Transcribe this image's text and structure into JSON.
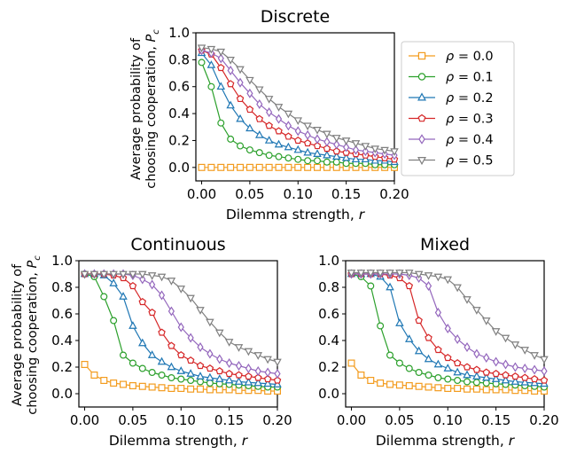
{
  "figure": {
    "ylabel_line1": "Average probability of",
    "ylabel_line2": "choosing cooperation,",
    "ylabel_symbol": "P",
    "ylabel_sub": "c"
  },
  "legend": {
    "symbol": "ρ",
    "entries": [
      "= 0.0",
      "= 0.1",
      "= 0.2",
      "= 0.3",
      "= 0.4",
      "= 0.5"
    ]
  },
  "chart_data": [
    {
      "type": "line",
      "title": "Discrete",
      "xlabel": "Dilemma strength, ",
      "xlabel_var": "r",
      "xlim": [
        -0.006,
        0.2
      ],
      "ylim": [
        -0.1,
        1.0
      ],
      "xticks": [
        "0.00",
        "0.05",
        "0.10",
        "0.15",
        "0.20"
      ],
      "yticks": [
        "0.0",
        "0.2",
        "0.4",
        "0.6",
        "0.8",
        "1.0"
      ],
      "x": [
        0.0,
        0.01,
        0.02,
        0.03,
        0.04,
        0.05,
        0.06,
        0.07,
        0.08,
        0.09,
        0.1,
        0.11,
        0.12,
        0.13,
        0.14,
        0.15,
        0.16,
        0.17,
        0.18,
        0.19,
        0.2
      ],
      "series": [
        {
          "name": "ρ = 0.0",
          "color": "#f39c1f",
          "marker": "square",
          "values": [
            0.0,
            0.0,
            0.0,
            0.0,
            0.0,
            0.0,
            0.0,
            0.0,
            0.0,
            0.0,
            0.0,
            0.0,
            0.0,
            0.0,
            0.0,
            0.0,
            0.0,
            0.0,
            0.0,
            0.0,
            0.0
          ]
        },
        {
          "name": "ρ = 0.1",
          "color": "#2ca02c",
          "marker": "circle",
          "values": [
            0.78,
            0.6,
            0.33,
            0.21,
            0.16,
            0.13,
            0.11,
            0.09,
            0.08,
            0.07,
            0.06,
            0.05,
            0.05,
            0.04,
            0.04,
            0.03,
            0.03,
            0.03,
            0.02,
            0.02,
            0.02
          ]
        },
        {
          "name": "ρ = 0.2",
          "color": "#1f77b4",
          "marker": "triangle-up",
          "values": [
            0.85,
            0.76,
            0.6,
            0.46,
            0.36,
            0.29,
            0.24,
            0.2,
            0.17,
            0.15,
            0.13,
            0.11,
            0.1,
            0.09,
            0.08,
            0.07,
            0.06,
            0.06,
            0.05,
            0.05,
            0.04
          ]
        },
        {
          "name": "ρ = 0.3",
          "color": "#d62728",
          "marker": "pentagon",
          "values": [
            0.87,
            0.84,
            0.74,
            0.62,
            0.51,
            0.43,
            0.36,
            0.31,
            0.27,
            0.23,
            0.2,
            0.18,
            0.16,
            0.14,
            0.12,
            0.11,
            0.1,
            0.09,
            0.08,
            0.07,
            0.06
          ]
        },
        {
          "name": "ρ = 0.4",
          "color": "#9467bd",
          "marker": "diamond",
          "values": [
            0.87,
            0.85,
            0.81,
            0.72,
            0.63,
            0.55,
            0.47,
            0.41,
            0.36,
            0.31,
            0.27,
            0.24,
            0.21,
            0.19,
            0.17,
            0.15,
            0.13,
            0.12,
            0.11,
            0.1,
            0.09
          ]
        },
        {
          "name": "ρ = 0.5",
          "color": "#7f7f7f",
          "marker": "triangle-down",
          "values": [
            0.89,
            0.88,
            0.86,
            0.8,
            0.73,
            0.65,
            0.58,
            0.51,
            0.45,
            0.4,
            0.35,
            0.31,
            0.28,
            0.25,
            0.22,
            0.2,
            0.18,
            0.16,
            0.14,
            0.13,
            0.12
          ]
        }
      ]
    },
    {
      "type": "line",
      "title": "Continuous",
      "xlabel": "Dilemma strength, ",
      "xlabel_var": "r",
      "xlim": [
        -0.006,
        0.2
      ],
      "ylim": [
        -0.1,
        1.0
      ],
      "xticks": [
        "0.00",
        "0.05",
        "0.10",
        "0.15",
        "0.20"
      ],
      "yticks": [
        "0.0",
        "0.2",
        "0.4",
        "0.6",
        "0.8",
        "1.0"
      ],
      "x": [
        0.0,
        0.01,
        0.02,
        0.03,
        0.04,
        0.05,
        0.06,
        0.07,
        0.08,
        0.09,
        0.1,
        0.11,
        0.12,
        0.13,
        0.14,
        0.15,
        0.16,
        0.17,
        0.18,
        0.19,
        0.2
      ],
      "series": [
        {
          "name": "ρ = 0.0",
          "color": "#f39c1f",
          "marker": "square",
          "values": [
            0.22,
            0.14,
            0.1,
            0.08,
            0.07,
            0.06,
            0.055,
            0.05,
            0.045,
            0.04,
            0.04,
            0.035,
            0.035,
            0.03,
            0.03,
            0.03,
            0.025,
            0.025,
            0.025,
            0.02,
            0.02
          ]
        },
        {
          "name": "ρ = 0.1",
          "color": "#2ca02c",
          "marker": "circle",
          "values": [
            0.9,
            0.88,
            0.73,
            0.55,
            0.29,
            0.23,
            0.19,
            0.16,
            0.14,
            0.12,
            0.11,
            0.1,
            0.09,
            0.08,
            0.075,
            0.07,
            0.065,
            0.06,
            0.055,
            0.05,
            0.05
          ]
        },
        {
          "name": "ρ = 0.2",
          "color": "#1f77b4",
          "marker": "triangle-up",
          "values": [
            0.9,
            0.9,
            0.89,
            0.83,
            0.73,
            0.51,
            0.38,
            0.29,
            0.24,
            0.2,
            0.17,
            0.15,
            0.13,
            0.12,
            0.11,
            0.1,
            0.09,
            0.085,
            0.08,
            0.075,
            0.07
          ]
        },
        {
          "name": "ρ = 0.3",
          "color": "#d62728",
          "marker": "pentagon",
          "values": [
            0.9,
            0.9,
            0.9,
            0.89,
            0.87,
            0.81,
            0.69,
            0.61,
            0.46,
            0.36,
            0.29,
            0.25,
            0.21,
            0.19,
            0.17,
            0.15,
            0.14,
            0.13,
            0.12,
            0.11,
            0.1
          ]
        },
        {
          "name": "ρ = 0.4",
          "color": "#9467bd",
          "marker": "diamond",
          "values": [
            0.9,
            0.9,
            0.9,
            0.9,
            0.9,
            0.89,
            0.86,
            0.82,
            0.74,
            0.62,
            0.5,
            0.42,
            0.35,
            0.3,
            0.26,
            0.23,
            0.21,
            0.19,
            0.17,
            0.16,
            0.15
          ]
        },
        {
          "name": "ρ = 0.5",
          "color": "#7f7f7f",
          "marker": "triangle-down",
          "values": [
            0.9,
            0.9,
            0.9,
            0.9,
            0.9,
            0.9,
            0.9,
            0.89,
            0.88,
            0.85,
            0.79,
            0.72,
            0.63,
            0.54,
            0.46,
            0.39,
            0.35,
            0.32,
            0.29,
            0.26,
            0.24
          ]
        }
      ]
    },
    {
      "type": "line",
      "title": "Mixed",
      "xlabel": "Dilemma strength, ",
      "xlabel_var": "r",
      "xlim": [
        -0.006,
        0.2
      ],
      "ylim": [
        -0.1,
        1.0
      ],
      "xticks": [
        "0.00",
        "0.05",
        "0.10",
        "0.15",
        "0.20"
      ],
      "yticks": [
        "0.0",
        "0.2",
        "0.4",
        "0.6",
        "0.8",
        "1.0"
      ],
      "x": [
        0.0,
        0.01,
        0.02,
        0.03,
        0.04,
        0.05,
        0.06,
        0.07,
        0.08,
        0.09,
        0.1,
        0.11,
        0.12,
        0.13,
        0.14,
        0.15,
        0.16,
        0.17,
        0.18,
        0.19,
        0.2
      ],
      "series": [
        {
          "name": "ρ = 0.0",
          "color": "#f39c1f",
          "marker": "square",
          "values": [
            0.23,
            0.14,
            0.1,
            0.08,
            0.07,
            0.065,
            0.06,
            0.055,
            0.05,
            0.045,
            0.04,
            0.04,
            0.035,
            0.035,
            0.03,
            0.03,
            0.03,
            0.025,
            0.025,
            0.02,
            0.02
          ]
        },
        {
          "name": "ρ = 0.1",
          "color": "#2ca02c",
          "marker": "circle",
          "values": [
            0.9,
            0.88,
            0.81,
            0.51,
            0.29,
            0.23,
            0.19,
            0.16,
            0.14,
            0.12,
            0.11,
            0.1,
            0.09,
            0.085,
            0.08,
            0.075,
            0.07,
            0.065,
            0.06,
            0.055,
            0.05
          ]
        },
        {
          "name": "ρ = 0.2",
          "color": "#1f77b4",
          "marker": "triangle-up",
          "values": [
            0.9,
            0.9,
            0.9,
            0.88,
            0.8,
            0.53,
            0.41,
            0.32,
            0.26,
            0.22,
            0.19,
            0.16,
            0.14,
            0.13,
            0.12,
            0.11,
            0.1,
            0.09,
            0.085,
            0.08,
            0.075
          ]
        },
        {
          "name": "ρ = 0.3",
          "color": "#d62728",
          "marker": "pentagon",
          "values": [
            0.9,
            0.9,
            0.9,
            0.9,
            0.89,
            0.87,
            0.81,
            0.55,
            0.42,
            0.33,
            0.27,
            0.23,
            0.2,
            0.18,
            0.16,
            0.15,
            0.14,
            0.13,
            0.12,
            0.11,
            0.1
          ]
        },
        {
          "name": "ρ = 0.4",
          "color": "#9467bd",
          "marker": "diamond",
          "values": [
            0.9,
            0.9,
            0.9,
            0.9,
            0.9,
            0.9,
            0.89,
            0.87,
            0.81,
            0.61,
            0.49,
            0.41,
            0.35,
            0.3,
            0.27,
            0.24,
            0.22,
            0.2,
            0.19,
            0.18,
            0.17
          ]
        },
        {
          "name": "ρ = 0.5",
          "color": "#7f7f7f",
          "marker": "triangle-down",
          "values": [
            0.91,
            0.91,
            0.91,
            0.91,
            0.91,
            0.91,
            0.91,
            0.9,
            0.89,
            0.88,
            0.86,
            0.8,
            0.71,
            0.63,
            0.55,
            0.47,
            0.42,
            0.37,
            0.33,
            0.29,
            0.26
          ]
        }
      ]
    }
  ]
}
